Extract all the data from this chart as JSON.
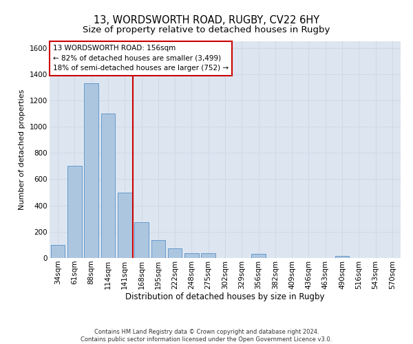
{
  "title": "13, WORDSWORTH ROAD, RUGBY, CV22 6HY",
  "subtitle": "Size of property relative to detached houses in Rugby",
  "xlabel": "Distribution of detached houses by size in Rugby",
  "ylabel": "Number of detached properties",
  "categories": [
    "34sqm",
    "61sqm",
    "88sqm",
    "114sqm",
    "141sqm",
    "168sqm",
    "195sqm",
    "222sqm",
    "248sqm",
    "275sqm",
    "302sqm",
    "329sqm",
    "356sqm",
    "382sqm",
    "409sqm",
    "436sqm",
    "463sqm",
    "490sqm",
    "516sqm",
    "543sqm",
    "570sqm"
  ],
  "values": [
    97,
    700,
    1330,
    1100,
    500,
    275,
    137,
    72,
    35,
    35,
    0,
    0,
    30,
    0,
    0,
    0,
    0,
    18,
    0,
    0,
    0
  ],
  "bar_color": "#adc6e0",
  "bar_edge_color": "#6699cc",
  "vline_color": "#cc0000",
  "vline_x": 4.5,
  "annotation_text": "13 WORDSWORTH ROAD: 156sqm\n← 82% of detached houses are smaller (3,499)\n18% of semi-detached houses are larger (752) →",
  "annotation_box_color": "#ffffff",
  "annotation_box_edge_color": "#cc0000",
  "ylim": [
    0,
    1650
  ],
  "yticks": [
    0,
    200,
    400,
    600,
    800,
    1000,
    1200,
    1400,
    1600
  ],
  "grid_color": "#d0d8e8",
  "bg_color": "#dde6f0",
  "footer_line1": "Contains HM Land Registry data © Crown copyright and database right 2024.",
  "footer_line2": "Contains public sector information licensed under the Open Government Licence v3.0.",
  "title_fontsize": 10.5,
  "subtitle_fontsize": 9.5,
  "xlabel_fontsize": 8.5,
  "ylabel_fontsize": 8,
  "tick_fontsize": 7.5,
  "annotation_fontsize": 7.5,
  "footer_fontsize": 6
}
